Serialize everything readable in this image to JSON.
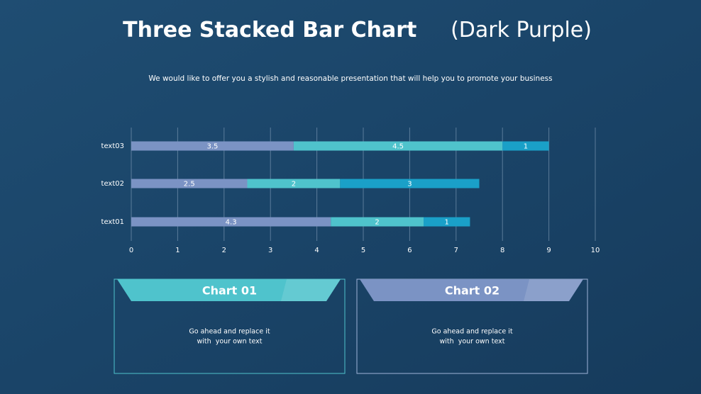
{
  "slide": {
    "title": [
      "Three Stacked Bar Chart",
      "(Dark Purple)"
    ],
    "subtitle": "We would like to offer you a stylish and reasonable presentation that will help you to promote your business"
  },
  "chart_data": {
    "type": "stacked-bar-horizontal",
    "categories": [
      "text01",
      "text02",
      "text03"
    ],
    "series": [
      {
        "color": "#7b93c4",
        "values": [
          4.3,
          2.5,
          3.5
        ]
      },
      {
        "color": "#4fc3cc",
        "values": [
          2,
          2,
          4.5
        ]
      },
      {
        "color": "#1aa0c8",
        "values": [
          1,
          3,
          1
        ]
      }
    ],
    "xlim": [
      0,
      10
    ],
    "xticks": [
      0,
      1,
      2,
      3,
      4,
      5,
      6,
      7,
      8,
      9,
      10
    ],
    "grid": true
  },
  "cards": [
    {
      "title": "Chart 01",
      "color": "#4fc3cc",
      "lines": [
        "Go ahead and replace it",
        "with  your own text"
      ]
    },
    {
      "title": "Chart 02",
      "color": "#7b93c4",
      "lines": [
        "Go ahead and replace it",
        "with  your own text"
      ]
    }
  ]
}
